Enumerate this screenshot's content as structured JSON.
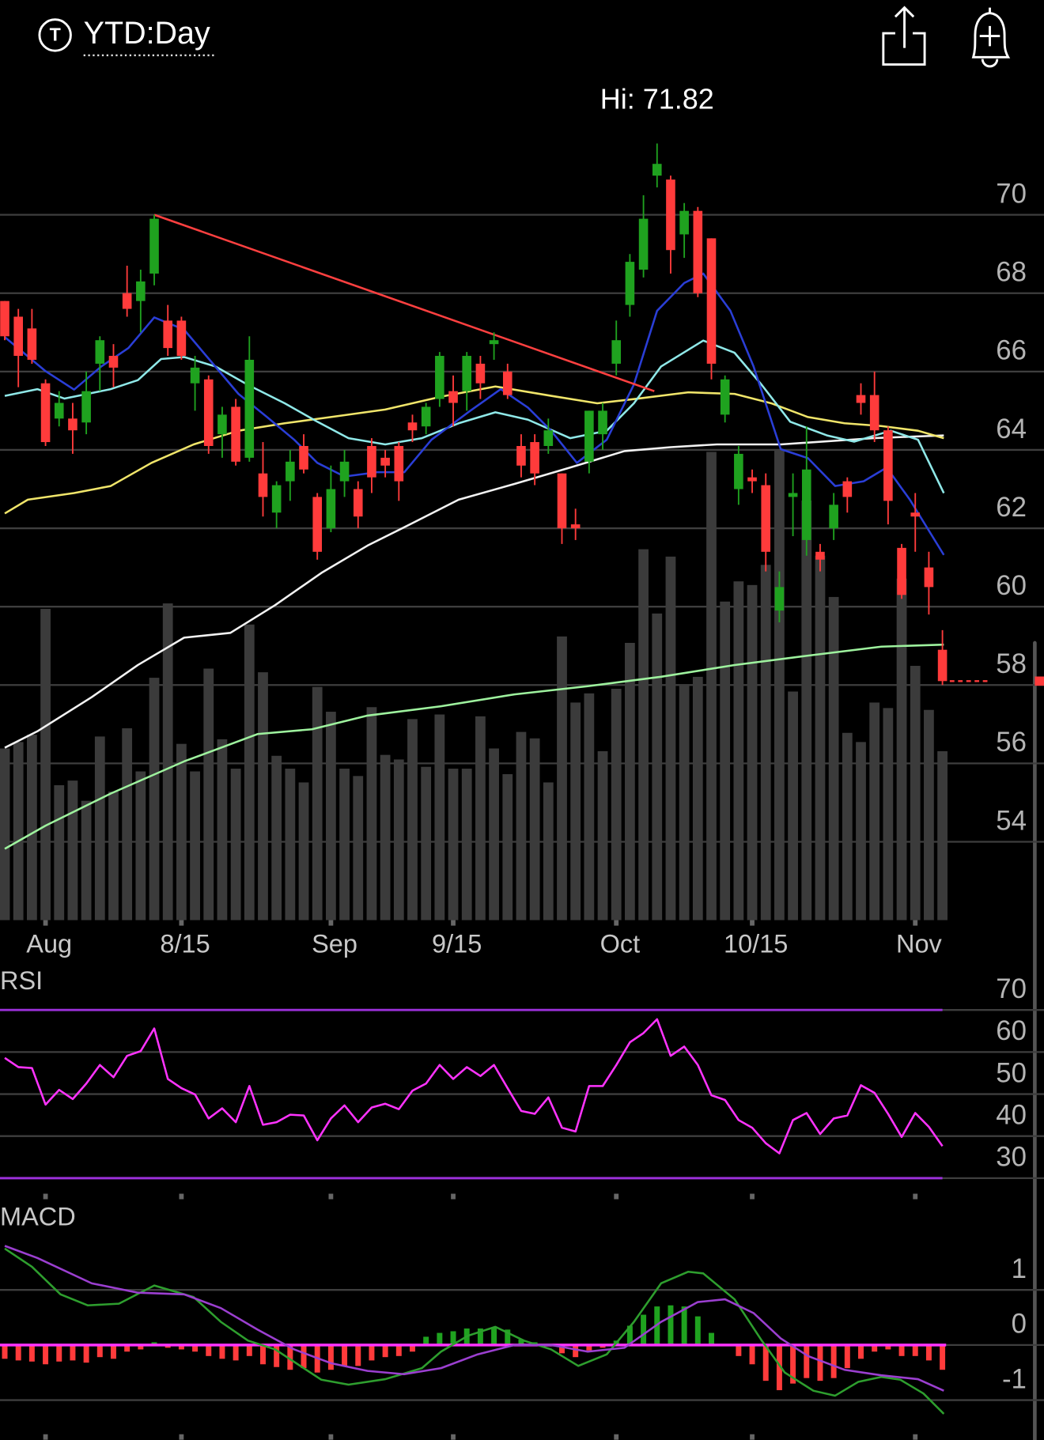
{
  "header": {
    "icon": "T",
    "title": "YTD:Day"
  },
  "chart_data": [
    {
      "type": "candlestick",
      "annotation": "Hi: 71.82",
      "xlim": [
        -0.35,
        76
      ],
      "ylim": [
        52,
        72.5
      ],
      "yticks": [
        54,
        56,
        58,
        60,
        62,
        64,
        66,
        68,
        70
      ],
      "grid": true,
      "xticks": [
        {
          "value": 3,
          "label": "Aug"
        },
        {
          "value": 13,
          "label": "8/15"
        },
        {
          "value": 24,
          "label": "Sep"
        },
        {
          "value": 33,
          "label": "9/15"
        },
        {
          "value": 45,
          "label": "Oct"
        },
        {
          "value": 55,
          "label": "10/15"
        },
        {
          "value": 67,
          "label": "Nov"
        }
      ],
      "up_color": "#1fa21f",
      "down_color": "#ff3b3b",
      "volume_color": "#3b3b3b",
      "open": [
        67.8,
        67.4,
        67.1,
        65.7,
        64.8,
        64.8,
        64.7,
        66.2,
        66.4,
        68.0,
        67.8,
        68.5,
        67.3,
        67.3,
        65.7,
        65.8,
        64.4,
        65.1,
        63.8,
        63.4,
        62.4,
        63.2,
        64.1,
        62.8,
        62.0,
        63.2,
        63.0,
        64.1,
        63.8,
        64.1,
        64.7,
        64.6,
        65.3,
        65.5,
        65.5,
        66.2,
        66.7,
        66.0,
        64.1,
        64.2,
        64.1,
        63.4,
        62.1,
        63.7,
        64.4,
        66.2,
        67.7,
        68.6,
        71.0,
        70.9,
        69.5,
        70.1,
        69.4,
        64.9,
        63.0,
        63.3,
        63.1,
        59.9,
        62.8,
        61.7,
        61.4,
        62.0,
        63.2,
        65.4,
        65.4,
        64.5,
        61.5,
        62.4,
        61.0,
        58.9
      ],
      "high": [
        67.8,
        67.6,
        67.6,
        65.8,
        65.5,
        65.2,
        66.0,
        66.9,
        66.7,
        68.7,
        68.6,
        70.0,
        67.7,
        67.4,
        66.4,
        65.9,
        65.1,
        65.3,
        66.9,
        64.2,
        63.2,
        64.0,
        64.4,
        62.9,
        63.6,
        64.0,
        63.2,
        64.3,
        64.0,
        64.2,
        64.9,
        65.2,
        66.5,
        65.9,
        66.5,
        66.4,
        67.0,
        66.2,
        64.4,
        64.4,
        64.8,
        63.4,
        62.5,
        65.0,
        65.2,
        67.3,
        69.0,
        70.5,
        71.82,
        71.0,
        70.3,
        70.2,
        69.4,
        65.9,
        64.1,
        63.5,
        63.4,
        60.9,
        63.4,
        64.6,
        61.6,
        62.9,
        63.3,
        65.7,
        66.0,
        64.6,
        61.6,
        62.9,
        61.4,
        59.4
      ],
      "low": [
        66.8,
        65.6,
        66.2,
        64.1,
        64.6,
        63.9,
        64.4,
        65.5,
        65.6,
        67.4,
        67.0,
        68.2,
        66.4,
        66.3,
        65.0,
        63.9,
        63.8,
        63.6,
        63.7,
        62.3,
        62.0,
        62.7,
        63.4,
        61.2,
        61.9,
        62.8,
        62.0,
        62.9,
        63.3,
        62.7,
        64.2,
        64.4,
        65.1,
        64.6,
        65.0,
        65.3,
        66.3,
        65.3,
        63.3,
        63.1,
        63.9,
        61.6,
        61.7,
        63.4,
        64.0,
        65.9,
        67.4,
        68.4,
        70.7,
        68.5,
        68.9,
        67.9,
        65.8,
        64.7,
        62.6,
        62.9,
        60.9,
        59.6,
        61.8,
        61.3,
        60.9,
        61.7,
        62.4,
        64.9,
        64.2,
        62.1,
        60.2,
        61.4,
        59.8,
        58.0
      ],
      "close": [
        66.9,
        66.4,
        66.3,
        64.2,
        65.2,
        64.5,
        65.5,
        66.8,
        66.1,
        67.6,
        68.3,
        69.9,
        66.6,
        66.4,
        66.1,
        64.1,
        64.9,
        63.7,
        66.3,
        62.8,
        63.1,
        63.7,
        63.5,
        61.4,
        63.0,
        63.7,
        62.3,
        63.3,
        63.6,
        63.2,
        64.5,
        65.1,
        66.4,
        65.2,
        66.4,
        65.7,
        66.8,
        65.4,
        63.6,
        63.4,
        64.5,
        62.0,
        62.0,
        65.0,
        65.0,
        66.8,
        68.8,
        69.9,
        71.3,
        69.1,
        70.1,
        68.0,
        66.2,
        65.8,
        63.9,
        63.2,
        61.4,
        60.5,
        62.9,
        63.5,
        61.2,
        62.6,
        62.8,
        65.2,
        64.5,
        62.7,
        60.3,
        62.3,
        60.5,
        58.1
      ],
      "volume": [
        187,
        194,
        202,
        339,
        147,
        152,
        130,
        200,
        140,
        209,
        162,
        264,
        345,
        192,
        162,
        274,
        197,
        165,
        322,
        270,
        179,
        165,
        150,
        254,
        227,
        165,
        157,
        232,
        180,
        175,
        219,
        167,
        224,
        165,
        165,
        222,
        187,
        159,
        205,
        198,
        150,
        309,
        237,
        247,
        184,
        252,
        302,
        404,
        334,
        396,
        257,
        265,
        510,
        347,
        369,
        365,
        387,
        512,
        249,
        457,
        397,
        352,
        204,
        194,
        237,
        231,
        372,
        277,
        229,
        184
      ],
      "overlays": [
        {
          "color": "#f2f2f2",
          "x": [
            0,
            2.4,
            6.4,
            9.8,
            13.2,
            16.6,
            19.9,
            23.3,
            26.7,
            30.1,
            33.4,
            37.5,
            41.6,
            45.6,
            49.0,
            52.4,
            57.1,
            63.9,
            69.1
          ],
          "values": [
            56.4,
            56.82,
            57.69,
            58.51,
            59.21,
            59.33,
            60.04,
            60.86,
            61.56,
            62.15,
            62.73,
            63.13,
            63.55,
            63.97,
            64.07,
            64.14,
            64.14,
            64.3,
            64.37
          ]
        },
        {
          "color": "#9ef29e",
          "x": [
            0,
            3.0,
            7.8,
            13.2,
            18.6,
            22.6,
            26.7,
            32.1,
            37.5,
            42.9,
            48.3,
            53.7,
            59.1,
            64.5,
            69.1
          ],
          "values": [
            53.82,
            54.41,
            55.23,
            56.05,
            56.75,
            56.87,
            57.22,
            57.46,
            57.76,
            57.97,
            58.21,
            58.51,
            58.75,
            58.98,
            59.03
          ]
        },
        {
          "color": "#f0e56a",
          "x": [
            0,
            1.7,
            5.1,
            7.8,
            10.8,
            13.9,
            17.2,
            20.6,
            24.0,
            28.0,
            32.1,
            36.1,
            40.2,
            43.6,
            46.6,
            50.3,
            53.7,
            56.4,
            59.1,
            61.8,
            64.5,
            67.2,
            69.1
          ],
          "values": [
            62.38,
            62.73,
            62.9,
            63.08,
            63.67,
            64.14,
            64.49,
            64.68,
            64.84,
            65.03,
            65.36,
            65.62,
            65.38,
            65.19,
            65.31,
            65.47,
            65.43,
            65.19,
            64.84,
            64.68,
            64.61,
            64.49,
            64.3
          ]
        },
        {
          "color": "#8fe8e8",
          "x": [
            0,
            2.4,
            4.4,
            7.8,
            9.8,
            11.5,
            13.2,
            15.5,
            17.9,
            20.6,
            23.0,
            25.3,
            28.0,
            30.7,
            33.4,
            36.1,
            38.5,
            41.6,
            44.3,
            46.3,
            48.3,
            51.4,
            53.7,
            55.7,
            57.8,
            60.5,
            62.5,
            65.2,
            67.2,
            69.1
          ],
          "values": [
            65.38,
            65.55,
            65.31,
            65.55,
            65.78,
            66.32,
            66.37,
            66.13,
            65.66,
            65.19,
            64.72,
            64.3,
            64.14,
            64.3,
            64.68,
            64.96,
            64.77,
            64.3,
            64.49,
            65.19,
            66.13,
            66.79,
            66.48,
            65.66,
            64.72,
            64.37,
            64.21,
            64.49,
            64.26,
            62.9
          ]
        },
        {
          "color": "#2a3ed6",
          "x": [
            0,
            3.0,
            5.1,
            7.1,
            9.1,
            11.0,
            13.2,
            15.2,
            17.2,
            19.3,
            21.3,
            23.0,
            25.0,
            27.4,
            29.4,
            31.4,
            34.1,
            36.5,
            38.5,
            40.2,
            42.1,
            44.3,
            46.3,
            48.0,
            50.0,
            51.4,
            53.4,
            55.1,
            57.1,
            59.1,
            61.1,
            63.2,
            64.9,
            66.6,
            69.1
          ],
          "values": [
            66.88,
            66.01,
            65.54,
            66.13,
            66.6,
            67.38,
            67.07,
            66.25,
            65.43,
            64.84,
            64.26,
            63.67,
            63.32,
            63.43,
            63.43,
            64.26,
            64.96,
            65.55,
            65.08,
            64.49,
            63.67,
            64.26,
            65.67,
            67.55,
            68.26,
            68.5,
            67.55,
            66.13,
            64.02,
            63.79,
            63.08,
            63.2,
            63.55,
            62.73,
            61.32
          ]
        }
      ],
      "trendline": {
        "color": "#ff4040",
        "x": [
          11,
          47.8
        ],
        "values": [
          70.0,
          65.5
        ]
      }
    },
    {
      "type": "line",
      "label": "RSI",
      "xlim": [
        -0.35,
        76
      ],
      "ylim": [
        26.3,
        78.7
      ],
      "yticks": [
        30,
        40,
        50,
        60,
        70
      ],
      "grid": true,
      "overbought": 70,
      "oversold": 30,
      "band_color": "#9b30d9",
      "color": "#ff33ff",
      "values": [
        58.6,
        56.4,
        56.2,
        47.5,
        51.0,
        48.8,
        52.5,
        56.9,
        54.0,
        59.1,
        60.2,
        65.6,
        53.6,
        51.4,
        49.9,
        44.2,
        46.6,
        43.3,
        51.9,
        42.7,
        43.3,
        45.1,
        44.9,
        39.0,
        44.2,
        47.3,
        43.3,
        46.8,
        47.7,
        46.4,
        50.8,
        52.5,
        56.9,
        53.6,
        56.4,
        54.3,
        56.9,
        51.4,
        46.0,
        45.3,
        49.2,
        42.0,
        41.1,
        51.9,
        51.9,
        56.9,
        62.3,
        64.5,
        67.8,
        59.1,
        61.3,
        56.9,
        49.7,
        48.6,
        43.8,
        42.0,
        38.3,
        35.9,
        43.8,
        45.5,
        40.5,
        44.2,
        44.9,
        52.1,
        50.3,
        45.3,
        39.8,
        45.5,
        42.2,
        37.6
      ]
    },
    {
      "type": "macd",
      "label": "MACD",
      "xlim": [
        -0.35,
        76
      ],
      "ylim": [
        -1.72,
        2.58
      ],
      "yticks": [
        -1,
        0,
        1
      ],
      "grid": true,
      "up_color": "#1fa21f",
      "down_color": "#ff3b3b",
      "zero_color": "#ff33ff",
      "histogram": [
        -0.25,
        -0.28,
        -0.3,
        -0.35,
        -0.3,
        -0.28,
        -0.32,
        -0.22,
        -0.25,
        -0.12,
        -0.08,
        0.05,
        -0.05,
        -0.08,
        -0.12,
        -0.2,
        -0.25,
        -0.28,
        -0.2,
        -0.35,
        -0.4,
        -0.45,
        -0.42,
        -0.5,
        -0.45,
        -0.38,
        -0.38,
        -0.28,
        -0.22,
        -0.2,
        -0.12,
        0.15,
        0.22,
        0.25,
        0.3,
        0.3,
        0.32,
        0.28,
        0.1,
        0.05,
        0.02,
        -0.15,
        -0.22,
        -0.1,
        -0.05,
        0.08,
        0.35,
        0.55,
        0.7,
        0.72,
        0.7,
        0.52,
        0.22,
        -0.02,
        -0.2,
        -0.35,
        -0.65,
        -0.82,
        -0.7,
        -0.6,
        -0.65,
        -0.6,
        -0.42,
        -0.25,
        -0.12,
        -0.08,
        -0.2,
        -0.2,
        -0.28,
        -0.45
      ],
      "series": [
        {
          "color": "#2e9e2e",
          "x": [
            0,
            2.0,
            4.1,
            6.1,
            8.4,
            11.0,
            13.9,
            15.9,
            17.9,
            19.9,
            22.0,
            23.3,
            25.3,
            28.0,
            30.7,
            32.1,
            34.1,
            36.1,
            38.2,
            40.2,
            42.2,
            44.3,
            46.3,
            48.3,
            50.3,
            51.4,
            53.7,
            55.7,
            57.4,
            59.5,
            61.1,
            62.8,
            64.5,
            65.9,
            67.6,
            69.1
          ],
          "values": [
            1.75,
            1.42,
            0.92,
            0.72,
            0.75,
            1.08,
            0.87,
            0.42,
            0.08,
            -0.08,
            -0.42,
            -0.63,
            -0.72,
            -0.62,
            -0.42,
            -0.12,
            0.17,
            0.33,
            0.08,
            -0.08,
            -0.38,
            -0.17,
            0.42,
            1.12,
            1.33,
            1.3,
            0.83,
            0.08,
            -0.5,
            -0.83,
            -0.92,
            -0.67,
            -0.58,
            -0.63,
            -0.88,
            -1.25
          ]
        },
        {
          "color": "#9b3fd0",
          "x": [
            0,
            2.4,
            6.4,
            9.8,
            13.2,
            15.9,
            18.6,
            21.3,
            24.0,
            26.7,
            29.4,
            32.1,
            34.8,
            37.5,
            40.2,
            42.9,
            45.6,
            48.3,
            51.0,
            53.0,
            55.1,
            57.1,
            59.1,
            61.8,
            64.5,
            67.2,
            69.1
          ],
          "values": [
            1.8,
            1.58,
            1.12,
            0.95,
            0.92,
            0.67,
            0.28,
            -0.08,
            -0.33,
            -0.47,
            -0.53,
            -0.42,
            -0.17,
            0,
            0,
            -0.12,
            -0.05,
            0.42,
            0.78,
            0.83,
            0.58,
            0.12,
            -0.2,
            -0.45,
            -0.55,
            -0.62,
            -0.83
          ]
        }
      ]
    }
  ]
}
